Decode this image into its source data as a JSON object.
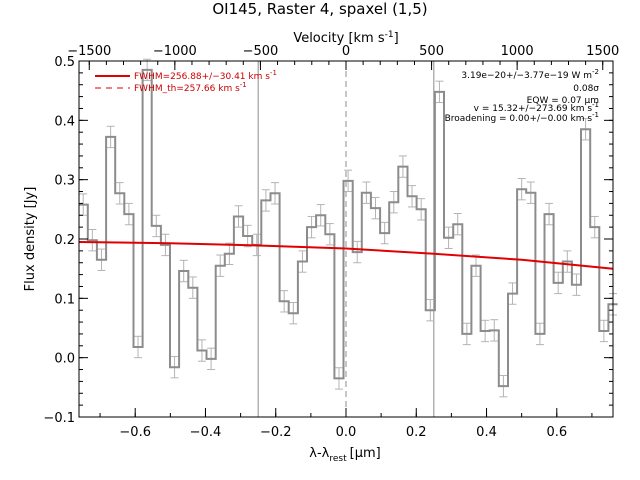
{
  "chart_data": {
    "type": "line",
    "title": "OI145, Raster 4, spaxel (1,5)",
    "xlabel": "λ-λ",
    "xlabel_sub": "rest",
    "xlabel_unit": "[μm]",
    "ylabel": "Flux density [Jy]",
    "top_axis_label": "Velocity [km s",
    "top_axis_sup": "-1",
    "top_axis_close": "]",
    "xlim": [
      -0.76,
      0.76
    ],
    "ylim": [
      -0.1,
      0.5
    ],
    "top_xlim": [
      -1560,
      1560
    ],
    "x_ticks": [
      -0.6,
      -0.4,
      -0.2,
      0.0,
      0.2,
      0.4,
      0.6
    ],
    "x_tick_labels": [
      "−0.6",
      "−0.4",
      "−0.2",
      "0.0",
      "0.2",
      "0.4",
      "0.6"
    ],
    "y_ticks": [
      -0.1,
      0.0,
      0.1,
      0.2,
      0.3,
      0.4,
      0.5
    ],
    "y_tick_labels": [
      "−0.1",
      "0.0",
      "0.1",
      "0.2",
      "0.3",
      "0.4",
      "0.5"
    ],
    "top_ticks": [
      -1500,
      -1000,
      -500,
      0,
      500,
      1000,
      1500
    ],
    "top_tick_labels": [
      "−1500",
      "−1000",
      "−500",
      "0",
      "500",
      "1000",
      "1500"
    ],
    "vertical_lines": [
      -0.25,
      0.25
    ],
    "center_line": 0.0,
    "spectrum": {
      "x": [
        -0.748,
        -0.722,
        -0.696,
        -0.67,
        -0.644,
        -0.618,
        -0.592,
        -0.566,
        -0.54,
        -0.514,
        -0.488,
        -0.462,
        -0.436,
        -0.41,
        -0.384,
        -0.358,
        -0.332,
        -0.306,
        -0.28,
        -0.254,
        -0.228,
        -0.202,
        -0.176,
        -0.15,
        -0.124,
        -0.098,
        -0.072,
        -0.046,
        -0.02,
        0.006,
        0.032,
        0.058,
        0.084,
        0.11,
        0.136,
        0.162,
        0.188,
        0.214,
        0.24,
        0.266,
        0.292,
        0.318,
        0.344,
        0.37,
        0.396,
        0.422,
        0.448,
        0.474,
        0.5,
        0.526,
        0.552,
        0.578,
        0.604,
        0.63,
        0.656,
        0.682,
        0.708,
        0.734,
        0.76
      ],
      "y": [
        0.258,
        0.198,
        0.165,
        0.372,
        0.277,
        0.242,
        0.018,
        0.485,
        0.222,
        0.19,
        -0.016,
        0.146,
        0.118,
        0.012,
        -0.002,
        0.155,
        0.175,
        0.238,
        0.205,
        0.19,
        0.265,
        0.277,
        0.095,
        0.075,
        0.162,
        0.22,
        0.24,
        0.208,
        -0.035,
        0.298,
        0.178,
        0.278,
        0.252,
        0.21,
        0.262,
        0.322,
        0.272,
        0.25,
        0.08,
        0.448,
        0.202,
        0.225,
        0.04,
        0.155,
        0.045,
        0.046,
        -0.048,
        0.108,
        0.284,
        0.278,
        0.04,
        0.242,
        0.126,
        0.162,
        0.123,
        0.385,
        0.22,
        0.045,
        0.09
      ],
      "err": 0.018
    },
    "model_fit": {
      "x": [
        -0.76,
        -0.5,
        -0.25,
        0.0,
        0.25,
        0.5,
        0.76
      ],
      "y": [
        0.195,
        0.193,
        0.189,
        0.184,
        0.175,
        0.165,
        0.15
      ]
    },
    "legend": [
      {
        "label": "FWHM=256.88+/−30.41 km s",
        "sup": "-1",
        "style": "solid"
      },
      {
        "label": "FWHM_th=257.66 km s",
        "sup": "-1",
        "style": "dashed"
      }
    ],
    "annotations": [
      {
        "text": "3.19e−20+/−3.77e−19 W m",
        "sup": "-2"
      },
      {
        "text": "0.08σ",
        "sup": ""
      },
      {
        "text": "EQW = 0.07 μm",
        "sup": ""
      },
      {
        "text": "v = 15.32+/−273.69 km s",
        "sup": "-1"
      },
      {
        "text": "Broadening = 0.00+/−0.00 km s",
        "sup": "-1"
      }
    ],
    "colors": {
      "spectrum": "#8c8c8c",
      "error": "#b4b4b4",
      "fit": "#e00000",
      "axis": "#000000",
      "vline": "#8c8c8c"
    }
  }
}
